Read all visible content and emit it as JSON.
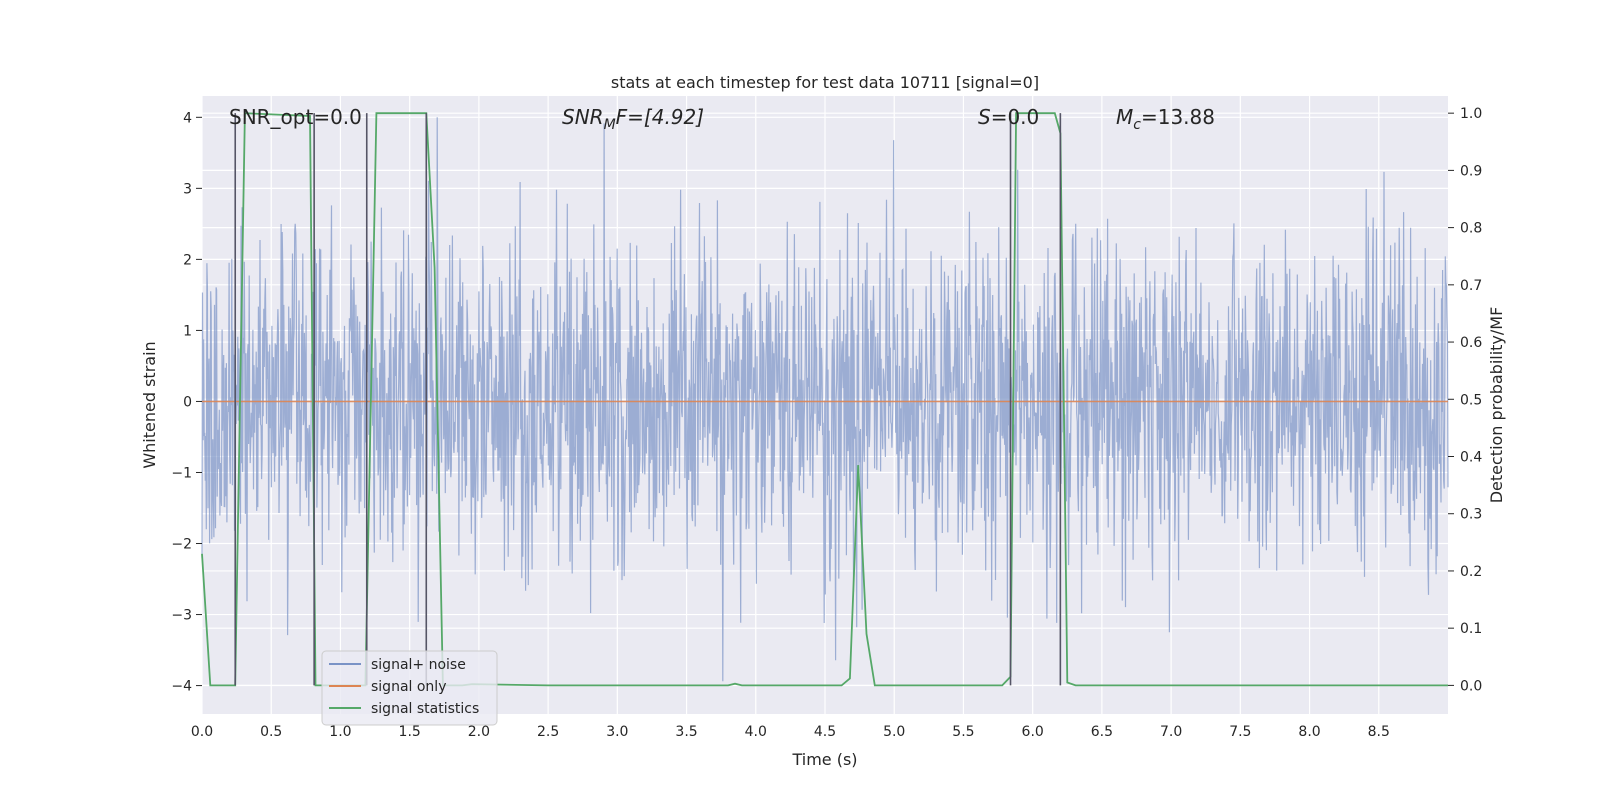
{
  "chart_data": {
    "type": "line",
    "title": "stats at each timestep for test data 10711 [signal=0]",
    "xlabel": "Time (s)",
    "ylabel_left": "Whitened strain",
    "ylabel_right": "Detection probability/MF",
    "xlim": [
      0.0,
      9.0
    ],
    "ylim_left": [
      -4.4,
      4.3
    ],
    "ylim_right": [
      -0.05,
      1.03
    ],
    "x_ticks": [
      0.0,
      0.5,
      1.0,
      1.5,
      2.0,
      2.5,
      3.0,
      3.5,
      4.0,
      4.5,
      5.0,
      5.5,
      6.0,
      6.5,
      7.0,
      7.5,
      8.0,
      8.5
    ],
    "x_tick_labels": [
      "0.0",
      "0.5",
      "1.0",
      "1.5",
      "2.0",
      "2.5",
      "3.0",
      "3.5",
      "4.0",
      "4.5",
      "5.0",
      "5.5",
      "6.0",
      "6.5",
      "7.0",
      "7.5",
      "8.0",
      "8.5"
    ],
    "y_left_ticks": [
      4,
      3,
      2,
      1,
      0,
      -1,
      -2,
      -3,
      -4
    ],
    "y_left_tick_labels": [
      "4",
      "3",
      "2",
      "1",
      "0",
      "−1",
      "−2",
      "−3",
      "−4"
    ],
    "y_right_ticks": [
      1.0,
      0.9,
      0.8,
      0.7,
      0.6,
      0.5,
      0.4,
      0.3,
      0.2,
      0.1,
      0.0
    ],
    "y_right_tick_labels": [
      "1.0",
      "0.9",
      "0.8",
      "0.7",
      "0.6",
      "0.5",
      "0.4",
      "0.3",
      "0.2",
      "0.1",
      "0.0"
    ],
    "annotations": {
      "snr_opt": "SNR_opt=0.0",
      "snr_mf_sym": "SNR",
      "snr_mf_sub": "M",
      "snr_mf_rest": "F=[4.92]",
      "s_sym": "S",
      "s_rest": "=0.0",
      "mc_sym": "M",
      "mc_sub": "c",
      "mc_rest": "=13.88"
    },
    "legend": {
      "position": "lower-left",
      "entries": [
        "signal+ noise",
        "signal only",
        "signal statistics"
      ]
    },
    "series": [
      {
        "name": "signal+ noise",
        "axis": "left",
        "color": "#7a93c6",
        "description_values": "whitened noise, sampled",
        "noise_seed": 10711,
        "noise_sigma": 1.15,
        "noise_points": 2300
      },
      {
        "name": "signal only",
        "axis": "left",
        "color": "#dd8452",
        "x": [
          0.0,
          9.0
        ],
        "values": [
          0.0,
          0.0
        ]
      },
      {
        "name": "signal statistics",
        "axis": "right",
        "color": "#55a868",
        "x": [
          0.0,
          0.06,
          0.24,
          0.31,
          0.78,
          0.82,
          0.85,
          1.18,
          1.26,
          1.62,
          1.68,
          1.74,
          1.88,
          1.95,
          2.5,
          3.8,
          3.85,
          3.9,
          4.62,
          4.68,
          4.74,
          4.8,
          4.86,
          5.78,
          5.84,
          5.88,
          6.16,
          6.2,
          6.25,
          6.31,
          9.0
        ],
        "values": [
          0.23,
          0.0,
          0.0,
          1.0,
          0.995,
          0.0,
          0.0,
          0.0,
          1.0,
          1.0,
          0.73,
          0.0,
          0.0,
          0.002,
          0.0,
          0.0,
          0.003,
          0.0,
          0.0,
          0.012,
          0.385,
          0.09,
          0.0,
          0.0,
          0.015,
          1.0,
          1.0,
          0.965,
          0.005,
          0.0,
          0.0
        ]
      }
    ],
    "vertical_markers_x": [
      0.24,
      0.81,
      1.19,
      1.62,
      5.84,
      6.2
    ]
  }
}
